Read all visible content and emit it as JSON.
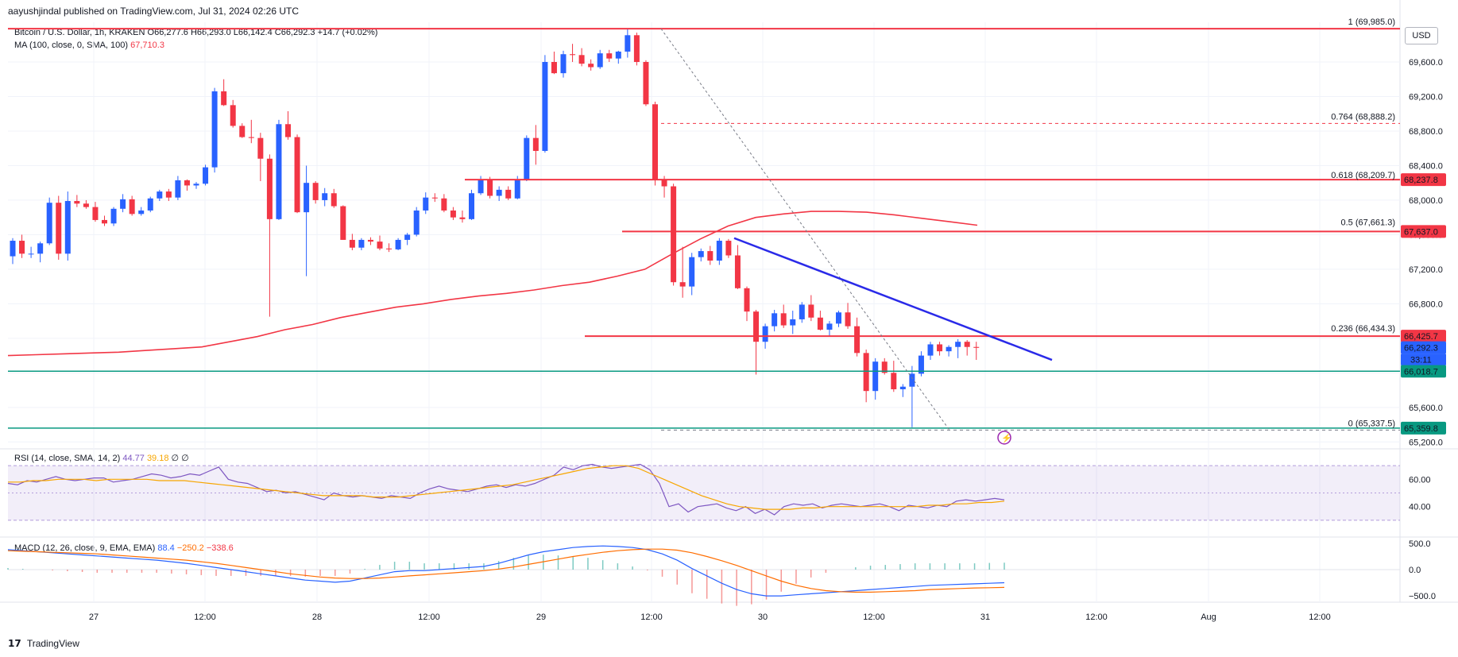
{
  "header": {
    "publisher_line": "aayushjindal published on TradingView.com, Jul 31, 2024 02:26 UTC"
  },
  "legend": {
    "symbol": "Bitcoin / U.S. Dollar, 1h, KRAKEN",
    "ohlc": "O66,277.6 H66,293.0 L66,142.4 C66,292.3 +14.7 (+0.02%)",
    "ma_label": "MA (100, close, 0, SMA, 100)",
    "ma_value": "67,710.3",
    "rsi_label": "RSI (14, close, SMA, 14, 2)",
    "rsi_value": "44.77",
    "rsi_ma_value": "39.18",
    "rsi_extra": "∅ ∅",
    "macd_label": "MACD (12, 26, close, 9, EMA, EMA)",
    "macd_hist": "88.4",
    "macd_line": "−250.2",
    "macd_signal": "−338.6"
  },
  "currency_button": "USD",
  "footer": {
    "brand": "TradingView",
    "mark": "17"
  },
  "colors": {
    "up": "#2962ff",
    "down": "#f23645",
    "ma": "#f23645",
    "trendline": "#2a2ae8",
    "support": "#089981",
    "rsi": "#7e57c2",
    "rsi_ma": "#f7a600",
    "macd": "#2962ff",
    "signal": "#ff6d00"
  },
  "chart_data": {
    "type": "candlestick",
    "title": "Bitcoin / U.S. Dollar, 1h, KRAKEN",
    "y_axis": {
      "ticks": [
        "69,600.0",
        "69,200.0",
        "68,800.0",
        "68,400.0",
        "68,000.0",
        "67,600.0",
        "67,200.0",
        "66,800.0",
        "66,400.0",
        "66,000.0",
        "65,600.0",
        "65,200.0"
      ],
      "range": [
        65120,
        70060
      ]
    },
    "x_axis": {
      "ticks": [
        "27",
        "12:00",
        "28",
        "12:00",
        "29",
        "12:00",
        "30",
        "12:00",
        "31",
        "12:00",
        "Aug",
        "12:00"
      ]
    },
    "candles_ohlc": [
      [
        67350,
        67560,
        67260,
        67530
      ],
      [
        67530,
        67600,
        67330,
        67380
      ],
      [
        67380,
        67460,
        67330,
        67380
      ],
      [
        67380,
        67520,
        67280,
        67500
      ],
      [
        67500,
        68030,
        67480,
        67970
      ],
      [
        67970,
        68050,
        67310,
        67380
      ],
      [
        67380,
        68100,
        67300,
        67990
      ],
      [
        67990,
        68060,
        67920,
        67960
      ],
      [
        67960,
        68000,
        67900,
        67920
      ],
      [
        67920,
        67980,
        67750,
        67770
      ],
      [
        67770,
        67820,
        67700,
        67730
      ],
      [
        67730,
        67920,
        67700,
        67900
      ],
      [
        67900,
        68070,
        67860,
        68010
      ],
      [
        68010,
        68050,
        67820,
        67840
      ],
      [
        67840,
        67920,
        67820,
        67880
      ],
      [
        67880,
        68040,
        67860,
        68020
      ],
      [
        68020,
        68120,
        67990,
        68100
      ],
      [
        68100,
        68130,
        67990,
        68030
      ],
      [
        68030,
        68280,
        68000,
        68230
      ],
      [
        68230,
        68240,
        68110,
        68170
      ],
      [
        68170,
        68210,
        68130,
        68190
      ],
      [
        68190,
        68410,
        68170,
        68380
      ],
      [
        68380,
        69300,
        68320,
        69260
      ],
      [
        69260,
        69400,
        69090,
        69100
      ],
      [
        69100,
        69160,
        68840,
        68860
      ],
      [
        68860,
        68890,
        68720,
        68730
      ],
      [
        68730,
        68930,
        68660,
        68720
      ],
      [
        68720,
        68780,
        68220,
        68480
      ],
      [
        68480,
        68530,
        66650,
        67780
      ],
      [
        67780,
        68930,
        67770,
        68880
      ],
      [
        68880,
        69030,
        68700,
        68730
      ],
      [
        68730,
        68760,
        67850,
        67860
      ],
      [
        67860,
        68400,
        67120,
        68200
      ],
      [
        68200,
        68220,
        67960,
        68000
      ],
      [
        68000,
        68140,
        67930,
        68080
      ],
      [
        68080,
        68130,
        67910,
        67930
      ],
      [
        67930,
        67940,
        67540,
        67540
      ],
      [
        67540,
        67610,
        67420,
        67450
      ],
      [
        67450,
        67560,
        67420,
        67540
      ],
      [
        67540,
        67570,
        67480,
        67520
      ],
      [
        67520,
        67590,
        67420,
        67440
      ],
      [
        67440,
        67500,
        67400,
        67430
      ],
      [
        67430,
        67560,
        67420,
        67540
      ],
      [
        67540,
        67620,
        67480,
        67600
      ],
      [
        67600,
        67920,
        67580,
        67880
      ],
      [
        67880,
        68090,
        67840,
        68030
      ],
      [
        68030,
        68080,
        67980,
        68020
      ],
      [
        68020,
        68070,
        67860,
        67880
      ],
      [
        67880,
        67920,
        67770,
        67800
      ],
      [
        67800,
        67880,
        67740,
        67780
      ],
      [
        67780,
        68120,
        67770,
        68080
      ],
      [
        68080,
        68280,
        68060,
        68230
      ],
      [
        68230,
        68270,
        68020,
        68050
      ],
      [
        68050,
        68160,
        67990,
        68120
      ],
      [
        68120,
        68160,
        68000,
        68020
      ],
      [
        68020,
        68280,
        68010,
        68240
      ],
      [
        68240,
        68750,
        68220,
        68720
      ],
      [
        68720,
        68870,
        68410,
        68570
      ],
      [
        68570,
        69680,
        68550,
        69600
      ],
      [
        69600,
        69720,
        69460,
        69470
      ],
      [
        69470,
        69730,
        69420,
        69690
      ],
      [
        69690,
        69810,
        69600,
        69680
      ],
      [
        69680,
        69760,
        69550,
        69580
      ],
      [
        69580,
        69630,
        69500,
        69540
      ],
      [
        69540,
        69740,
        69520,
        69700
      ],
      [
        69700,
        69740,
        69600,
        69640
      ],
      [
        69640,
        69730,
        69580,
        69720
      ],
      [
        69720,
        69985,
        69650,
        69910
      ],
      [
        69910,
        69940,
        69560,
        69600
      ],
      [
        69600,
        69620,
        69090,
        69110
      ],
      [
        69110,
        69140,
        68170,
        68230
      ],
      [
        68230,
        68280,
        68030,
        68160
      ],
      [
        68160,
        68190,
        67010,
        67050
      ],
      [
        67050,
        67460,
        66870,
        67000
      ],
      [
        67000,
        67390,
        66900,
        67340
      ],
      [
        67340,
        67440,
        67290,
        67410
      ],
      [
        67410,
        67470,
        67250,
        67300
      ],
      [
        67300,
        67560,
        67250,
        67530
      ],
      [
        67530,
        67550,
        67330,
        67360
      ],
      [
        67360,
        67480,
        66970,
        66980
      ],
      [
        66980,
        67000,
        66600,
        66710
      ],
      [
        66710,
        66730,
        65980,
        66360
      ],
      [
        66360,
        66570,
        66280,
        66540
      ],
      [
        66540,
        66730,
        66480,
        66690
      ],
      [
        66690,
        66790,
        66520,
        66550
      ],
      [
        66550,
        66720,
        66450,
        66620
      ],
      [
        66620,
        66820,
        66580,
        66790
      ],
      [
        66790,
        66900,
        66600,
        66640
      ],
      [
        66640,
        66720,
        66490,
        66500
      ],
      [
        66500,
        66600,
        66430,
        66570
      ],
      [
        66570,
        66720,
        66530,
        66700
      ],
      [
        66700,
        66810,
        66510,
        66540
      ],
      [
        66540,
        66640,
        66190,
        66230
      ],
      [
        66230,
        66270,
        65660,
        65790
      ],
      [
        65790,
        66170,
        65690,
        66130
      ],
      [
        66130,
        66170,
        65980,
        66000
      ],
      [
        66000,
        66140,
        65780,
        65810
      ],
      [
        65810,
        65870,
        65720,
        65840
      ],
      [
        65840,
        66080,
        65370,
        65990
      ],
      [
        65990,
        66250,
        65960,
        66200
      ],
      [
        66200,
        66360,
        66150,
        66330
      ],
      [
        66330,
        66360,
        66200,
        66250
      ],
      [
        66250,
        66320,
        66190,
        66300
      ],
      [
        66300,
        66390,
        66170,
        66360
      ],
      [
        66360,
        66380,
        66200,
        66300
      ],
      [
        66300,
        66360,
        66150,
        66290
      ]
    ],
    "ma100_values": [
      66200,
      66210,
      66220,
      66230,
      66240,
      66260,
      66280,
      66300,
      66360,
      66420,
      66500,
      66560,
      66640,
      66700,
      66760,
      66800,
      66850,
      66890,
      66920,
      66960,
      67010,
      67050,
      67120,
      67200,
      67380,
      67550,
      67700,
      67800,
      67840,
      67870,
      67870,
      67860,
      67830,
      67790,
      67750,
      67710
    ],
    "levels": [
      {
        "label": "69,985.0",
        "kind": "resistance"
      },
      {
        "label": "68,237.8",
        "kind": "resistance"
      },
      {
        "label": "67,637.0",
        "kind": "resistance"
      },
      {
        "label": "66,425.7",
        "kind": "resistance"
      },
      {
        "label": "66,018.7",
        "kind": "support"
      },
      {
        "label": "65,359.8",
        "kind": "support"
      }
    ],
    "fib_levels": [
      {
        "label": "1 (69,985.0)",
        "value": 69985
      },
      {
        "label": "0.764 (68,888.2)",
        "value": 68888.2
      },
      {
        "label": "0.618 (68,209.7)",
        "value": 68209.7
      },
      {
        "label": "0.5 (67,661.3)",
        "value": 67661.3
      },
      {
        "label": "0.236 (66,434.3)",
        "value": 66434.3
      },
      {
        "label": "0 (65,337.5)",
        "value": 65337.5
      }
    ],
    "price_labels": [
      {
        "text": "68,237.8",
        "value": 68237.8,
        "color": "#f23645"
      },
      {
        "text": "67,637.0",
        "value": 67637.0,
        "color": "#f23645"
      },
      {
        "text": "66,425.7",
        "value": 66425.7,
        "color": "#f23645"
      },
      {
        "text": "66,292.3",
        "value": 66292.3,
        "color": "#2962ff"
      },
      {
        "text": "66,018.7",
        "value": 66018.7,
        "color": "#089981"
      },
      {
        "text": "65,359.8",
        "value": 65359.8,
        "color": "#089981"
      }
    ],
    "countdown": "33:11",
    "rsi": {
      "ticks": [
        "60.00",
        "40.00"
      ],
      "range": [
        20,
        80
      ],
      "values": [
        57,
        56,
        59,
        58,
        60,
        62,
        60,
        59,
        60,
        61,
        61,
        58,
        59,
        60,
        62,
        64,
        63,
        61,
        62,
        64,
        63,
        66,
        69,
        60,
        58,
        57,
        54,
        51,
        52,
        50,
        51,
        49,
        47,
        45,
        50,
        48,
        47,
        48,
        47,
        46,
        48,
        47,
        46,
        50,
        53,
        55,
        53,
        52,
        51,
        53,
        55,
        56,
        54,
        56,
        55,
        57,
        60,
        63,
        69,
        67,
        70,
        71,
        69,
        68,
        69,
        70,
        71,
        67,
        57,
        40,
        42,
        36,
        40,
        41,
        42,
        39,
        37,
        40,
        35,
        38,
        34,
        40,
        42,
        41,
        42,
        39,
        41,
        42,
        41,
        40,
        41,
        42,
        40,
        37,
        41,
        40,
        39,
        41,
        40,
        44,
        45,
        44,
        45,
        46,
        45
      ],
      "ma_values": [
        58,
        58,
        59,
        59,
        60,
        60,
        60,
        59,
        60,
        60,
        60,
        60,
        59,
        59,
        59,
        58,
        57,
        56,
        55,
        54,
        53,
        52,
        51,
        50,
        49,
        48,
        48,
        48,
        48,
        47,
        47,
        47,
        48,
        49,
        50,
        51,
        52,
        53,
        54,
        55,
        56,
        58,
        60,
        62,
        64,
        66,
        68,
        69,
        70,
        70,
        68,
        64,
        60,
        56,
        52,
        48,
        45,
        42,
        40,
        39,
        38,
        38,
        38,
        39,
        39,
        40,
        40,
        40,
        40,
        40,
        40,
        40,
        40,
        41,
        41,
        42,
        42,
        43,
        43,
        44
      ]
    },
    "macd": {
      "ticks": [
        "500.0",
        "0.0",
        "−500.0"
      ],
      "range": [
        -620,
        620
      ],
      "macd_values": [
        380,
        360,
        340,
        320,
        300,
        280,
        260,
        240,
        220,
        200,
        180,
        150,
        120,
        80,
        40,
        0,
        -40,
        -80,
        -120,
        -160,
        -200,
        -220,
        -240,
        -220,
        -160,
        -100,
        -40,
        -20,
        -20,
        0,
        20,
        40,
        60,
        120,
        200,
        280,
        340,
        380,
        420,
        440,
        450,
        440,
        420,
        380,
        300,
        180,
        20,
        -120,
        -260,
        -380,
        -460,
        -500,
        -500,
        -480,
        -460,
        -440,
        -420,
        -400,
        -380,
        -360,
        -340,
        -320,
        -300,
        -290,
        -280,
        -270,
        -260,
        -250
      ],
      "signal_values": [
        360,
        350,
        340,
        330,
        320,
        310,
        300,
        280,
        260,
        240,
        220,
        200,
        180,
        150,
        120,
        80,
        40,
        0,
        -40,
        -80,
        -110,
        -140,
        -160,
        -170,
        -170,
        -160,
        -140,
        -120,
        -100,
        -80,
        -60,
        -40,
        -20,
        10,
        50,
        100,
        150,
        200,
        250,
        290,
        330,
        360,
        380,
        390,
        390,
        370,
        320,
        250,
        170,
        80,
        -20,
        -120,
        -220,
        -300,
        -360,
        -400,
        -420,
        -430,
        -430,
        -420,
        -410,
        -400,
        -380,
        -370,
        -360,
        -350,
        -345,
        -338
      ]
    }
  }
}
